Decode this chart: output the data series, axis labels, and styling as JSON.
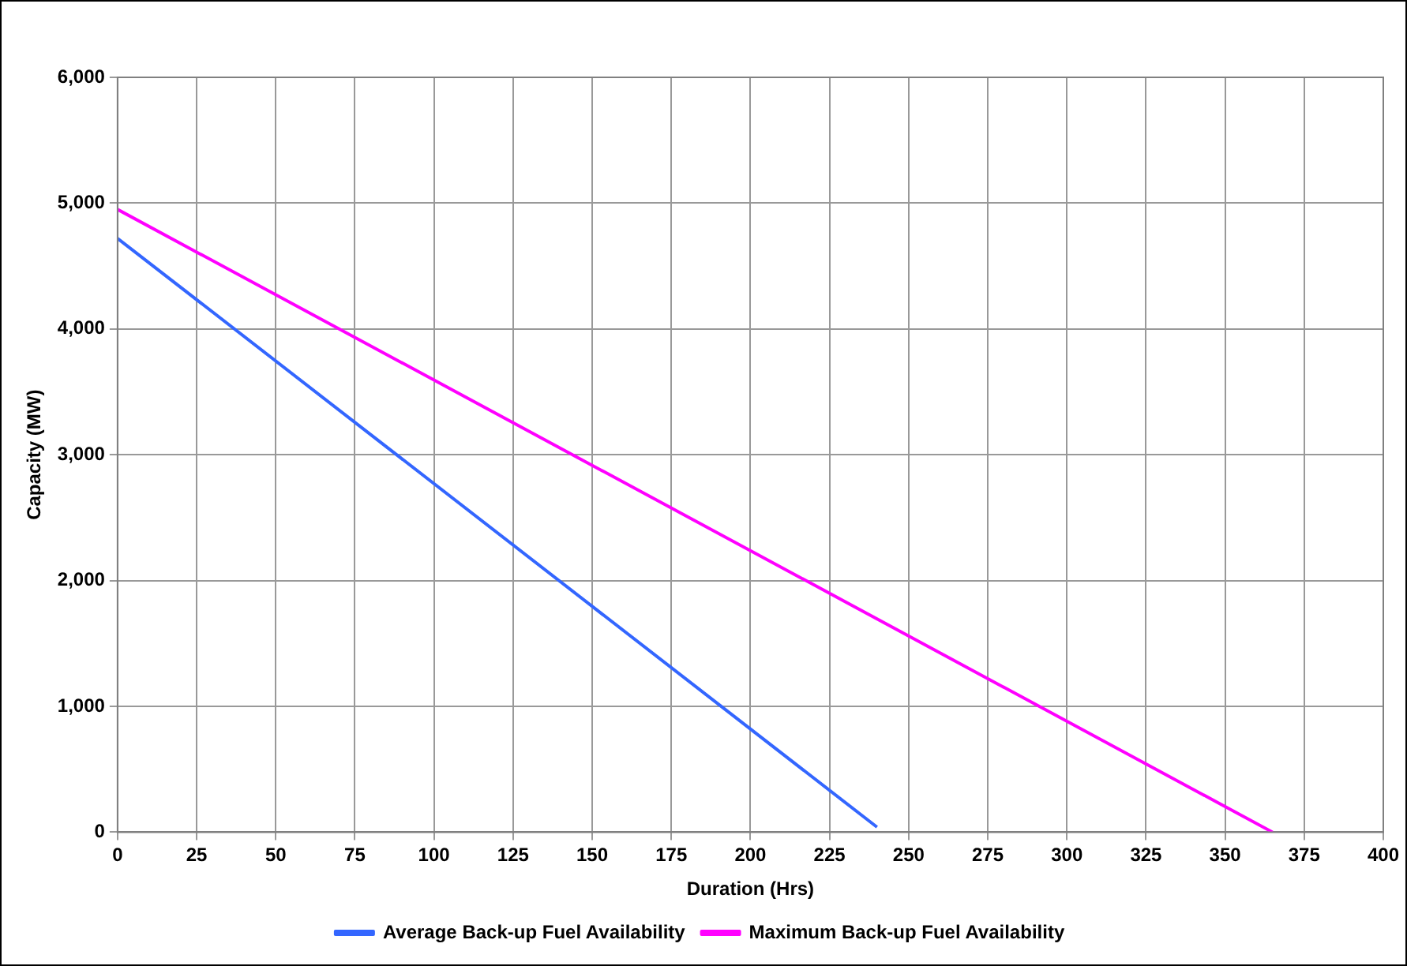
{
  "chart_data": {
    "type": "line",
    "xlabel": "Duration (Hrs)",
    "ylabel": "Capacity (MW)",
    "xlim": [
      0,
      400
    ],
    "xticks": [
      0,
      25,
      50,
      75,
      100,
      125,
      150,
      175,
      200,
      225,
      250,
      275,
      300,
      325,
      350,
      375,
      400
    ],
    "ylim": [
      0,
      6000
    ],
    "yticks": [
      {
        "value": 0,
        "label": "0"
      },
      {
        "value": 1000,
        "label": "1,000"
      },
      {
        "value": 2000,
        "label": "2,000"
      },
      {
        "value": 3000,
        "label": "3,000"
      },
      {
        "value": 4000,
        "label": "4,000"
      },
      {
        "value": 5000,
        "label": "5,000"
      },
      {
        "value": 6000,
        "label": "6,000"
      }
    ],
    "series": [
      {
        "name": "Average Back-up Fuel Availability",
        "color": "#3366ff",
        "x": [
          0,
          240
        ],
        "values": [
          4720,
          40
        ]
      },
      {
        "name": "Maximum Back-up Fuel Availability",
        "color": "#ff00ff",
        "x": [
          0,
          365
        ],
        "values": [
          4950,
          0
        ]
      }
    ],
    "grid": true,
    "legend": "bottom",
    "marker": "none",
    "line_style": "solid"
  }
}
